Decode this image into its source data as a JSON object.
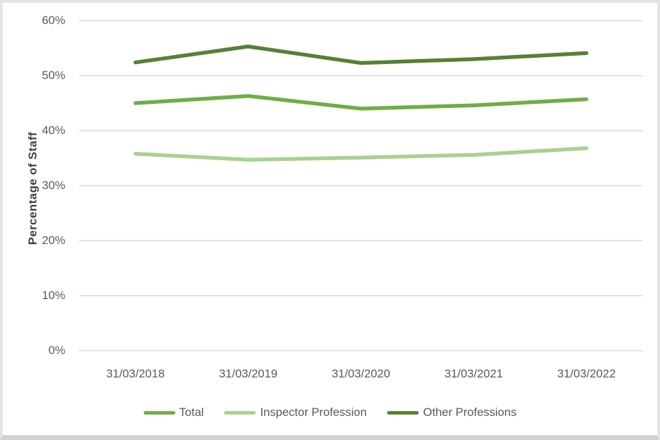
{
  "chart_data": {
    "type": "line",
    "title": "",
    "ylabel": "Percentage of Staff",
    "xlabel": "",
    "x": [
      "31/03/2018",
      "31/03/2019",
      "31/03/2020",
      "31/03/2021",
      "31/03/2022"
    ],
    "series": [
      {
        "name": "Total",
        "color": "#70AD47",
        "values": [
          45.0,
          46.3,
          44.0,
          44.6,
          45.7
        ]
      },
      {
        "name": "Inspector Profession",
        "color": "#A9D18E",
        "values": [
          35.8,
          34.7,
          35.1,
          35.6,
          36.8
        ]
      },
      {
        "name": "Other Professions",
        "color": "#548235",
        "values": [
          52.4,
          55.3,
          52.3,
          53.0,
          54.1
        ]
      }
    ],
    "ylim": [
      0,
      60
    ],
    "ytick_step": 10,
    "yticks": [
      "0%",
      "10%",
      "20%",
      "30%",
      "40%",
      "50%",
      "60%"
    ],
    "grid": true,
    "gridline_color": "#d9d9d9",
    "tick_text_color": "#595959",
    "legend_position": "bottom"
  }
}
